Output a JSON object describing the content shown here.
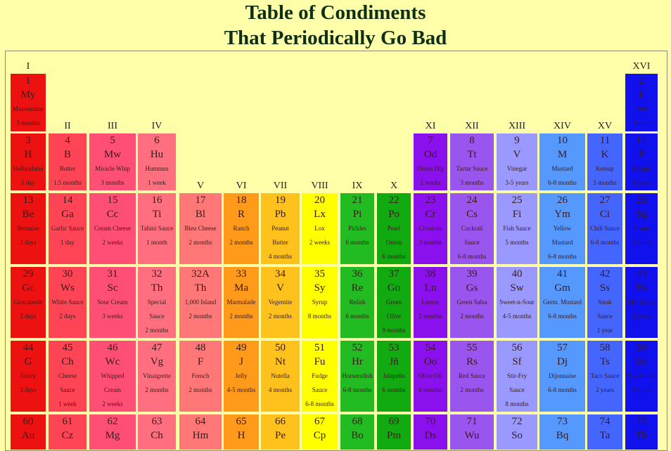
{
  "title": {
    "line1": "Table of Condiments",
    "line2": "That Periodically Go Bad"
  },
  "groups": [
    "I",
    "II",
    "III",
    "IV",
    "V",
    "VI",
    "VII",
    "VIII",
    "IX",
    "X",
    "XI",
    "XII",
    "XIII",
    "XIV",
    "XV",
    "XVI"
  ],
  "colors": {
    "I": "#ee1111",
    "II": "#ff4455",
    "III": "#ff4f77",
    "IV": "#ff6f7f",
    "V": "#ff7777",
    "VI": "#ff9a1a",
    "VII": "#ffc21c",
    "VIII": "#ffff00",
    "IX": "#22bb22",
    "X": "#11aa11",
    "XI": "#8a11ee",
    "XII": "#9955ee",
    "XIII": "#9999ff",
    "XIV": "#5599ff",
    "XV": "#4466ff",
    "XVI": "#1111ee"
  },
  "elements": [
    {
      "group": "I",
      "row": 1,
      "num": "1",
      "sym": "My",
      "name": "Mayonnaise",
      "time": "3 months"
    },
    {
      "group": "XVI",
      "row": 1,
      "num": "2",
      "sym": "F",
      "name": "Fish",
      "time": "Sauce"
    },
    {
      "group": "I",
      "row": 2,
      "num": "3",
      "sym": "H",
      "name": "Hollandaise",
      "time": "1 day"
    },
    {
      "group": "II",
      "row": 2,
      "num": "4",
      "sym": "B",
      "name": "Butter",
      "time": "1.5 months"
    },
    {
      "group": "III",
      "row": 2,
      "num": "5",
      "sym": "Mw",
      "name": "Miracle Whip",
      "time": "3 months"
    },
    {
      "group": "IV",
      "row": 2,
      "num": "6",
      "sym": "Hu",
      "name": "Hummus",
      "time": "1 week"
    },
    {
      "group": "XI",
      "row": 2,
      "num": "7",
      "sym": "Od",
      "name": "Onion Dip",
      "time": "2 weeks"
    },
    {
      "group": "XII",
      "row": 2,
      "num": "8",
      "sym": "Tt",
      "name": "Tartar Sauce",
      "time": "3 months"
    },
    {
      "group": "XIII",
      "row": 2,
      "num": "9",
      "sym": "V",
      "name": "Vinegar",
      "time": "3-5 years"
    },
    {
      "group": "XIV",
      "row": 2,
      "num": "10",
      "sym": "M",
      "name": "Mustard",
      "time": "6-8 months"
    },
    {
      "group": "XV",
      "row": 2,
      "num": "11",
      "sym": "K",
      "name": "Ketsup",
      "time": "5 months"
    },
    {
      "group": "XVI",
      "row": 2,
      "num": "12",
      "sym": "P",
      "name": "Pepper",
      "time": "4 years"
    },
    {
      "group": "I",
      "row": 3,
      "num": "13",
      "sym": "Be",
      "name": "Bernaise",
      "time": "2 days"
    },
    {
      "group": "II",
      "row": 3,
      "num": "14",
      "sym": "Ga",
      "name": "Garlic Sauce",
      "time": "1 day"
    },
    {
      "group": "III",
      "row": 3,
      "num": "15",
      "sym": "Cc",
      "name": "Cream Cheese",
      "time": "2 weeks"
    },
    {
      "group": "IV",
      "row": 3,
      "num": "16",
      "sym": "Ti",
      "name": "Tahini Sauce",
      "time": "1 month"
    },
    {
      "group": "V",
      "row": 3,
      "num": "17",
      "sym": "Bl",
      "name": "Bleu Cheese",
      "time": "2 months"
    },
    {
      "group": "VI",
      "row": 3,
      "num": "18",
      "sym": "R",
      "name": "Ranch",
      "time": "2 months"
    },
    {
      "group": "VII",
      "row": 3,
      "num": "19",
      "sym": "Pb",
      "name": "Peanut",
      "time": "Butter",
      "time2": "4 months"
    },
    {
      "group": "VIII",
      "row": 3,
      "num": "20",
      "sym": "Lx",
      "name": "Lox",
      "time": "2 weeks"
    },
    {
      "group": "IX",
      "row": 3,
      "num": "21",
      "sym": "Pi",
      "name": "Pickles",
      "time": "6 months"
    },
    {
      "group": "X",
      "row": 3,
      "num": "22",
      "sym": "Po",
      "name": "Pearl",
      "time": "Onion",
      "time2": "6 months"
    },
    {
      "group": "XI",
      "row": 3,
      "num": "23",
      "sym": "Cr",
      "name": "Croutons",
      "time": "3 months"
    },
    {
      "group": "XII",
      "row": 3,
      "num": "24",
      "sym": "Cs",
      "name": "Cocktail",
      "time": "Sauce",
      "time2": "6-8 months"
    },
    {
      "group": "XIII",
      "row": 3,
      "num": "25",
      "sym": "Fi",
      "name": "Fish Sauce",
      "time": "5 months"
    },
    {
      "group": "XIV",
      "row": 3,
      "num": "26",
      "sym": "Ym",
      "name": "Yellow",
      "time": "Mustard",
      "time2": "6-8 months"
    },
    {
      "group": "XV",
      "row": 3,
      "num": "27",
      "sym": "Ci",
      "name": "Chili Sauce",
      "time": "6-8 months"
    },
    {
      "group": "XVI",
      "row": 3,
      "num": "28",
      "sym": "Sg",
      "name": "Sugar",
      "time": "2 years"
    },
    {
      "group": "I",
      "row": 4,
      "num": "29",
      "sym": "Gc",
      "name": "Guacamole",
      "time": "2 days"
    },
    {
      "group": "II",
      "row": 4,
      "num": "30",
      "sym": "Ws",
      "name": "White Sauce",
      "time": "2 days"
    },
    {
      "group": "III",
      "row": 4,
      "num": "31",
      "sym": "Sc",
      "name": "Sour Cream",
      "time": "3 weeks"
    },
    {
      "group": "IV",
      "row": 4,
      "num": "32",
      "sym": "Th",
      "name": "Special",
      "time": "Sauce",
      "time2": "2 months"
    },
    {
      "group": "V",
      "row": 4,
      "num": "32A",
      "sym": "Th",
      "name": "1,000 Island",
      "time": "2 months"
    },
    {
      "group": "VI",
      "row": 4,
      "num": "33",
      "sym": "Ma",
      "name": "Marmalade",
      "time": "2 months"
    },
    {
      "group": "VII",
      "row": 4,
      "num": "34",
      "sym": "V",
      "name": "Vegemite",
      "time": "2 months"
    },
    {
      "group": "VIII",
      "row": 4,
      "num": "35",
      "sym": "Sy",
      "name": "Syrup",
      "time": "8 months"
    },
    {
      "group": "IX",
      "row": 4,
      "num": "36",
      "sym": "Re",
      "name": "Relish",
      "time": "6 months"
    },
    {
      "group": "X",
      "row": 4,
      "num": "37",
      "sym": "Go",
      "name": "Green",
      "time": "Olive",
      "time2": "9 months"
    },
    {
      "group": "XI",
      "row": 4,
      "num": "38",
      "sym": "Ln",
      "name": "Lemon",
      "time": "2 months"
    },
    {
      "group": "XII",
      "row": 4,
      "num": "39",
      "sym": "Gs",
      "name": "Green Salsa",
      "time": "2 months"
    },
    {
      "group": "XIII",
      "row": 4,
      "num": "40",
      "sym": "Sw",
      "name": "Sweet-n-Sour",
      "time": "4-5 months"
    },
    {
      "group": "XIV",
      "row": 4,
      "num": "41",
      "sym": "Gm",
      "name": "Germ. Mustard",
      "time": "6-8 months"
    },
    {
      "group": "XV",
      "row": 4,
      "num": "42",
      "sym": "Ss",
      "name": "Steak",
      "time": "Sauce",
      "time2": "1 year"
    },
    {
      "group": "XVI",
      "row": 4,
      "num": "43",
      "sym": "Hs",
      "name": "Hot Sauce",
      "time": "5 years"
    },
    {
      "group": "I",
      "row": 5,
      "num": "44",
      "sym": "G",
      "name": "Gravy",
      "time": "3 days"
    },
    {
      "group": "II",
      "row": 5,
      "num": "45",
      "sym": "Ch",
      "name": "Cheese",
      "time": "Sauce",
      "time2": "1 week"
    },
    {
      "group": "III",
      "row": 5,
      "num": "46",
      "sym": "Wc",
      "name": "Whipped",
      "time": "Cream",
      "time2": "2 weeks"
    },
    {
      "group": "IV",
      "row": 5,
      "num": "47",
      "sym": "Vg",
      "name": "Vinaigrette",
      "time": "2 months"
    },
    {
      "group": "V",
      "row": 5,
      "num": "48",
      "sym": "F",
      "name": "French",
      "time": "2 months"
    },
    {
      "group": "VI",
      "row": 5,
      "num": "49",
      "sym": "J",
      "name": "Jelly",
      "time": "4-5 months"
    },
    {
      "group": "VII",
      "row": 5,
      "num": "50",
      "sym": "Nt",
      "name": "Nutella",
      "time": "4 months"
    },
    {
      "group": "VIII",
      "row": 5,
      "num": "51",
      "sym": "Fu",
      "name": "Fudge",
      "time": "Sauce",
      "time2": "6-8 months"
    },
    {
      "group": "IX",
      "row": 5,
      "num": "52",
      "sym": "Hr",
      "name": "Horseradish",
      "time": "6-8 months"
    },
    {
      "group": "X",
      "row": 5,
      "num": "53",
      "sym": "Jñ",
      "name": "Jalapeño",
      "time": "6 months"
    },
    {
      "group": "XI",
      "row": 5,
      "num": "54",
      "sym": "Oo",
      "name": "Olive Oil",
      "time": "6 months"
    },
    {
      "group": "XII",
      "row": 5,
      "num": "55",
      "sym": "Rs",
      "name": "Red Sauce",
      "time": "2 months"
    },
    {
      "group": "XIII",
      "row": 5,
      "num": "56",
      "sym": "Sf",
      "name": "Stir-Fry",
      "time": "Sauce",
      "time2": "8 months"
    },
    {
      "group": "XIV",
      "row": 5,
      "num": "57",
      "sym": "Dj",
      "name": "Dijonnaise",
      "time": "6-8 months"
    },
    {
      "group": "XV",
      "row": 5,
      "num": "58",
      "sym": "Ts",
      "name": "Taco Sauce",
      "time": "2 years"
    },
    {
      "group": "XVI",
      "row": 5,
      "num": "59",
      "sym": "Ss",
      "name": "Soy Sauce",
      "time": "3 years"
    },
    {
      "group": "I",
      "row": 6,
      "num": "60",
      "sym": "Au"
    },
    {
      "group": "II",
      "row": 6,
      "num": "61",
      "sym": "Cz"
    },
    {
      "group": "III",
      "row": 6,
      "num": "62",
      "sym": "Mg"
    },
    {
      "group": "IV",
      "row": 6,
      "num": "63",
      "sym": "Ch"
    },
    {
      "group": "V",
      "row": 6,
      "num": "64",
      "sym": "Hm"
    },
    {
      "group": "VI",
      "row": 6,
      "num": "65",
      "sym": "H"
    },
    {
      "group": "VII",
      "row": 6,
      "num": "66",
      "sym": "Pe"
    },
    {
      "group": "VIII",
      "row": 6,
      "num": "67",
      "sym": "Cp"
    },
    {
      "group": "IX",
      "row": 6,
      "num": "68",
      "sym": "Bo"
    },
    {
      "group": "X",
      "row": 6,
      "num": "69",
      "sym": "Pm"
    },
    {
      "group": "XI",
      "row": 6,
      "num": "70",
      "sym": "Ds"
    },
    {
      "group": "XII",
      "row": 6,
      "num": "71",
      "sym": "Wu"
    },
    {
      "group": "XIII",
      "row": 6,
      "num": "72",
      "sym": "So"
    },
    {
      "group": "XIV",
      "row": 6,
      "num": "73",
      "sym": "Bq"
    },
    {
      "group": "XV",
      "row": 6,
      "num": "74",
      "sym": "Ta"
    },
    {
      "group": "XVI",
      "row": 6,
      "num": "75",
      "sym": "Tb"
    }
  ]
}
